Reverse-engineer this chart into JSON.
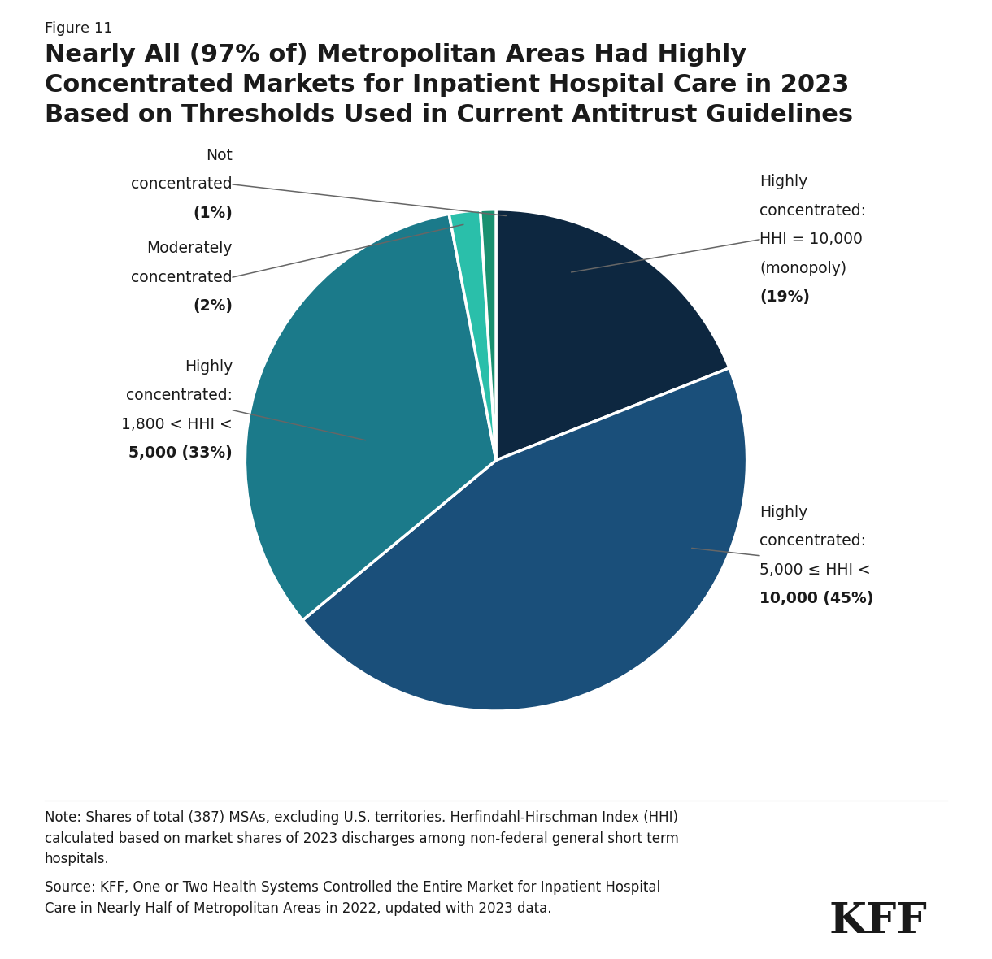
{
  "figure_label": "Figure 11",
  "title": "Nearly All (97% of) Metropolitan Areas Had Highly\nConcentrated Markets for Inpatient Hospital Care in 2023\nBased on Thresholds Used in Current Antitrust Guidelines",
  "slices": [
    {
      "value": 19,
      "color": "#0d2740"
    },
    {
      "value": 45,
      "color": "#1a4f7a"
    },
    {
      "value": 33,
      "color": "#1b7a8a"
    },
    {
      "value": 2,
      "color": "#2abfaa"
    },
    {
      "value": 1,
      "color": "#1a9070"
    }
  ],
  "note_text": "Note: Shares of total (387) MSAs, excluding U.S. territories. Herfindahl-Hirschman Index (HHI)\ncalculated based on market shares of 2023 discharges among non-federal general short term\nhospitals.",
  "source_text": "Source: KFF, One or Two Health Systems Controlled the Entire Market for Inpatient Hospital\nCare in Nearly Half of Metropolitan Areas in 2022, updated with 2023 data.",
  "kff_label": "KFF",
  "background_color": "#ffffff",
  "text_color": "#1a1a1a",
  "annotation_line_color": "#666666",
  "startangle": 90
}
